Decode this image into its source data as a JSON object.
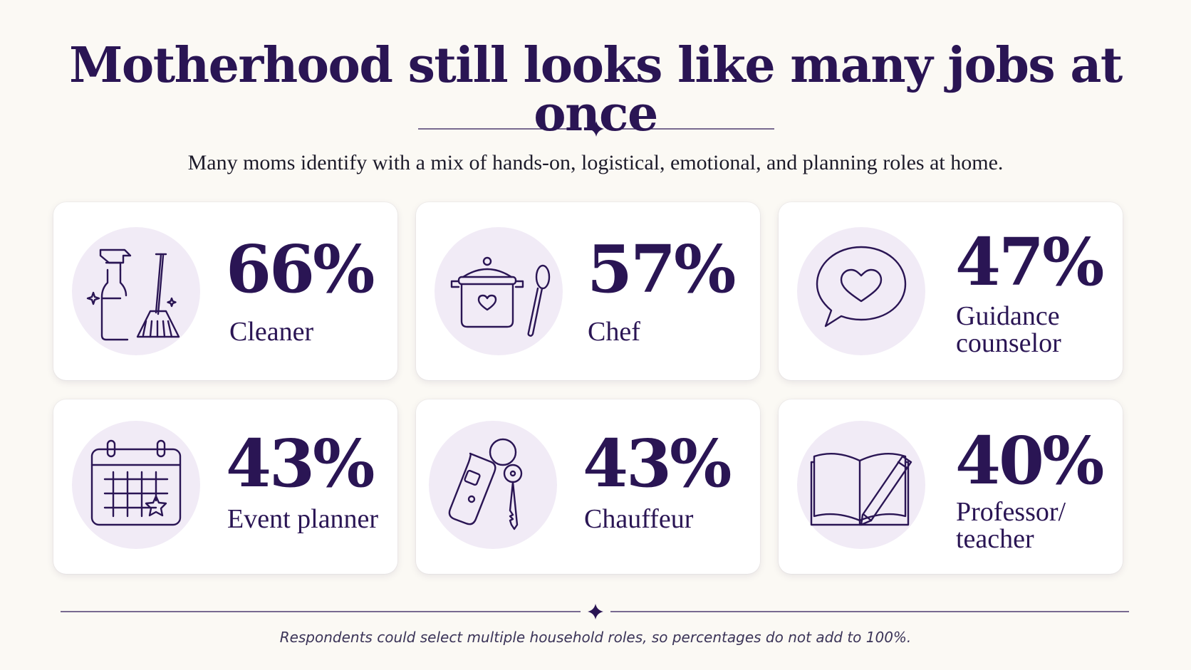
{
  "title": "Motherhood still looks like many jobs at once",
  "subtitle": "Many moms identify with a mix of hands-on, logistical, emotional, and planning roles at home.",
  "colors": {
    "accent": "#2a1554",
    "card_bg": "#ffffff",
    "icon_bg": "#f1ebf6",
    "page_bg": "#fbf9f4"
  },
  "cards": [
    {
      "percent": "66%",
      "role": "Cleaner",
      "icon": "spray-bottle-broom-icon"
    },
    {
      "percent": "57%",
      "role": "Chef",
      "icon": "cooking-pot-spoon-icon"
    },
    {
      "percent": "47%",
      "role_line1": "Guidance",
      "role_line2": "counselor",
      "icon": "speech-bubble-heart-icon"
    },
    {
      "percent": "43%",
      "role": "Event planner",
      "icon": "calendar-star-icon"
    },
    {
      "percent": "43%",
      "role": "Chauffeur",
      "icon": "car-key-fob-icon"
    },
    {
      "percent": "40%",
      "role_line1": "Professor/",
      "role_line2": "teacher",
      "icon": "book-pencil-icon"
    }
  ],
  "footnote": "Respondents could select multiple household roles, so percentages do not add to 100%."
}
